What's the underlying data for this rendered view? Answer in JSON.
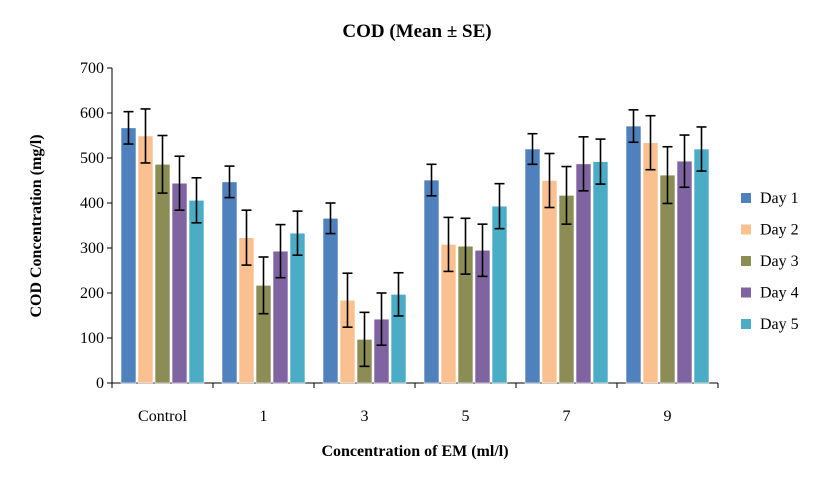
{
  "chart_data": {
    "type": "bar",
    "title": "COD (Mean ± SE)",
    "xlabel": "Concentration of EM (ml/l)",
    "ylabel": "COD Concentration (mg/l)",
    "ylim": [
      0,
      700
    ],
    "yticks": [
      0,
      100,
      200,
      300,
      400,
      500,
      600,
      700
    ],
    "categories": [
      "Control",
      "1",
      "3",
      "5",
      "7",
      "9"
    ],
    "series": [
      {
        "name": "Day 1",
        "color": "#4f81bd",
        "values": [
          567,
          447,
          366,
          451,
          520,
          571
        ],
        "errors": [
          36,
          35,
          34,
          35,
          34,
          36
        ]
      },
      {
        "name": "Day 2",
        "color": "#fac090",
        "values": [
          549,
          323,
          184,
          308,
          450,
          534
        ],
        "errors": [
          60,
          61,
          60,
          60,
          60,
          60
        ]
      },
      {
        "name": "Day 3",
        "color": "#8c8c55",
        "values": [
          486,
          217,
          97,
          304,
          417,
          462
        ],
        "errors": [
          64,
          63,
          60,
          62,
          64,
          63
        ]
      },
      {
        "name": "Day 4",
        "color": "#8064a2",
        "values": [
          444,
          293,
          142,
          295,
          487,
          493
        ],
        "errors": [
          60,
          59,
          58,
          58,
          60,
          58
        ]
      },
      {
        "name": "Day 5",
        "color": "#4bacc6",
        "values": [
          406,
          333,
          197,
          393,
          492,
          520
        ],
        "errors": [
          50,
          49,
          48,
          50,
          50,
          49
        ]
      }
    ],
    "grid": false,
    "legend": "right"
  }
}
